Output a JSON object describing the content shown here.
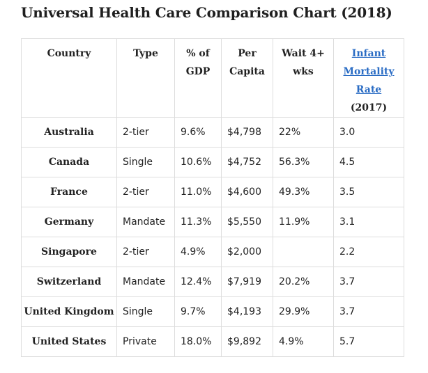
{
  "title": "Universal Health Care Comparison Chart (2018)",
  "headers": {
    "country": "Country",
    "type": "Type",
    "gdp_line1": "% of",
    "gdp_line2": "GDP",
    "capita_line1": "Per",
    "capita_line2": "Capita",
    "wait_line1": "Wait 4+",
    "wait_line2": "wks",
    "infant_line1": "Infant",
    "infant_line2": "Mortality",
    "infant_line3": "Rate",
    "infant_year": " (2017)"
  },
  "colors": {
    "link": "#2a6cc4",
    "border": "#dddddd",
    "text": "#222222"
  },
  "rows": [
    {
      "country": "Australia",
      "type": "2-tier",
      "gdp": "9.6%",
      "per_capita": "$4,798",
      "wait": "22%",
      "infant": "3.0"
    },
    {
      "country": "Canada",
      "type": "Single",
      "gdp": "10.6%",
      "per_capita": "$4,752",
      "wait": "56.3%",
      "infant": "4.5"
    },
    {
      "country": "France",
      "type": "2-tier",
      "gdp": "11.0%",
      "per_capita": "$4,600",
      "wait": "49.3%",
      "infant": "3.5"
    },
    {
      "country": "Germany",
      "type": "Mandate",
      "gdp": "11.3%",
      "per_capita": "$5,550",
      "wait": "11.9%",
      "infant": "3.1"
    },
    {
      "country": "Singapore",
      "type": "2-tier",
      "gdp": "4.9%",
      "per_capita": "$2,000",
      "wait": "",
      "infant": "2.2"
    },
    {
      "country": "Switzerland",
      "type": "Mandate",
      "gdp": "12.4%",
      "per_capita": "$7,919",
      "wait": "20.2%",
      "infant": "3.7"
    },
    {
      "country": "United Kingdom",
      "type": "Single",
      "gdp": "9.7%",
      "per_capita": "$4,193",
      "wait": "29.9%",
      "infant": "3.7"
    },
    {
      "country": "United States",
      "type": "Private",
      "gdp": "18.0%",
      "per_capita": "$9,892",
      "wait": "4.9%",
      "infant": "5.7"
    }
  ]
}
